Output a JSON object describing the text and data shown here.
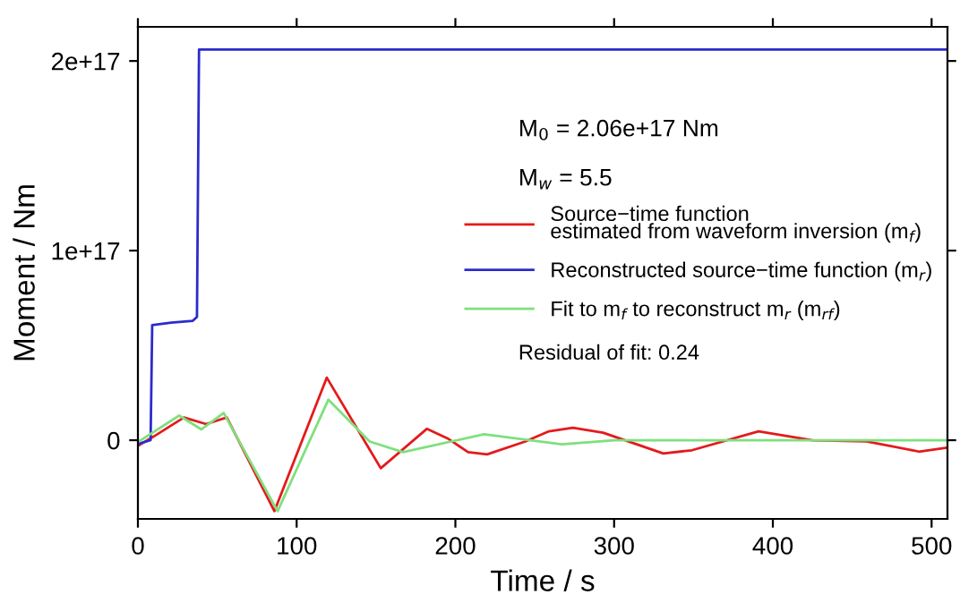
{
  "chart_data": {
    "type": "line",
    "xlabel": "Time / s",
    "ylabel": "Moment / Nm",
    "xlim": [
      0,
      510
    ],
    "ylim": [
      -4.15e+16,
      2.18e+17
    ],
    "xticks": [
      0,
      100,
      200,
      300,
      400,
      500
    ],
    "yticks": [
      0,
      {
        "value": 1e+17,
        "label": "1e+17"
      },
      {
        "value": 2e+17,
        "label": "2e+17"
      }
    ],
    "grid": false,
    "legend": "right",
    "marker": "none",
    "line_style": "solid",
    "series": [
      {
        "name": "Source−time function\nestimated from waveform inversion (m$_{f}$)",
        "color": "#e41a1c",
        "x": [
          0,
          10,
          29,
          43,
          56,
          86,
          119,
          153,
          182,
          195,
          208,
          220,
          244,
          259,
          274,
          293,
          331,
          349,
          391,
          425,
          459,
          492,
          509
        ],
        "values": [
          -3000000000000000.0,
          2000000000000000.0,
          1.2e+16,
          8500000000000000.0,
          1.2e+16,
          -3.74e+16,
          3.3e+16,
          -1.48e+16,
          6000000000000000.0,
          1000000000000000.0,
          -6300000000000000.0,
          -7500000000000000.0,
          -700000000000000.0,
          4700000000000000.0,
          6600000000000000.0,
          4000000000000000.0,
          -7000000000000000.0,
          -5300000000000000.0,
          4700000000000000.0,
          0,
          -600000000000000.0,
          -6000000000000000.0,
          -4000000000000000.0
        ]
      },
      {
        "name": "Reconstructed source−time function (m$_{r}$)",
        "color": "#2b2bcc",
        "x": [
          0,
          8,
          9,
          21,
          34.6,
          37.2,
          38.5,
          510
        ],
        "values": [
          -2000000000000000.0,
          0,
          6.07e+16,
          6.2e+16,
          6.3e+16,
          6.5e+16,
          2.06e+17,
          2.06e+17
        ]
      },
      {
        "name": "Fit to m$_{f}$ to reconstruct m$_{r}$ (m$_{rf}$)",
        "color": "#7ee07e",
        "x": [
          0,
          26,
          40,
          54,
          88,
          120,
          146,
          167,
          218,
          267,
          300,
          510
        ],
        "values": [
          -1000000000000000.0,
          1.3e+16,
          5700000000000000.0,
          1.44e+16,
          -3.74e+16,
          2.14e+16,
          -700000000000000.0,
          -6300000000000000.0,
          3100000000000000.0,
          -2200000000000000.0,
          0,
          0
        ]
      }
    ],
    "annotations": [
      "M$_{0}$ = 2.06e+17 Nm",
      "M$_{w}$ = 5.5",
      "Residual of fit: 0.24"
    ]
  }
}
